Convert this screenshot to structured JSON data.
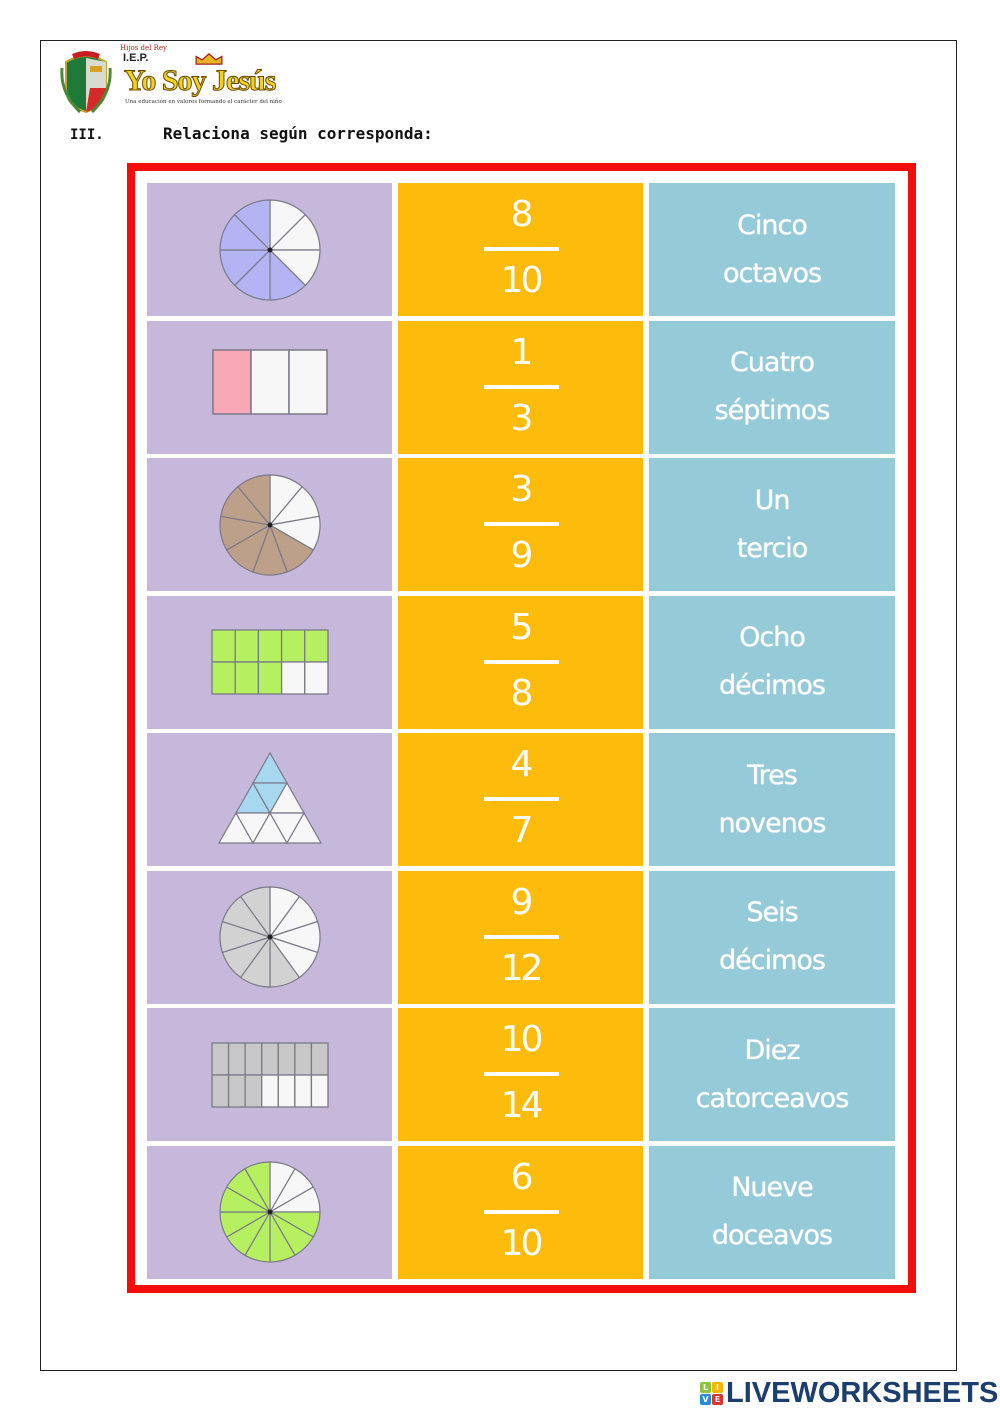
{
  "header": {
    "school_motto_top": "Hijos del Rey",
    "school_type": "I.E.P.",
    "school_name": "Yo Soy Jesús",
    "tagline": "Una educación en valores  formando el carácter del niño"
  },
  "exercise": {
    "number": "III.",
    "instruction": "Relaciona según corresponda:"
  },
  "colors": {
    "frame": "#f40d0d",
    "picture_column": "#c5b8da",
    "fraction_column": "#fdbb0c",
    "word_column": "#95cad9"
  },
  "rows": [
    {
      "picture": {
        "shape": "circle",
        "parts": 8,
        "shaded": 5,
        "color": "#b4b4f5"
      },
      "fraction": {
        "numerator": "8",
        "denominator": "10"
      },
      "words": [
        "Cinco",
        "octavos"
      ]
    },
    {
      "picture": {
        "shape": "bar",
        "parts": 3,
        "shaded": 1,
        "color": "#f9a8b8"
      },
      "fraction": {
        "numerator": "1",
        "denominator": "3"
      },
      "words": [
        "Cuatro",
        "séptimos"
      ]
    },
    {
      "picture": {
        "shape": "circle",
        "parts": 9,
        "shaded": 6,
        "color": "#bca08a"
      },
      "fraction": {
        "numerator": "3",
        "denominator": "9"
      },
      "words": [
        "Un",
        "tercio"
      ]
    },
    {
      "picture": {
        "shape": "grid",
        "parts": 10,
        "shaded": 8,
        "color": "#b6f060"
      },
      "fraction": {
        "numerator": "5",
        "denominator": "8"
      },
      "words": [
        "Ocho",
        "décimos"
      ]
    },
    {
      "picture": {
        "shape": "triangle",
        "parts": 9,
        "shaded": 3,
        "color": "#a8d8f0"
      },
      "fraction": {
        "numerator": "4",
        "denominator": "7"
      },
      "words": [
        "Tres",
        "novenos"
      ]
    },
    {
      "picture": {
        "shape": "circle",
        "parts": 10,
        "shaded": 6,
        "color": "#d2d2d2"
      },
      "fraction": {
        "numerator": "9",
        "denominator": "12"
      },
      "words": [
        "Seis",
        "décimos"
      ]
    },
    {
      "picture": {
        "shape": "grid",
        "parts": 14,
        "shaded": 10,
        "color": "#c8c8c8"
      },
      "fraction": {
        "numerator": "10",
        "denominator": "14"
      },
      "words": [
        "Diez",
        "catorceavos"
      ]
    },
    {
      "picture": {
        "shape": "circle",
        "parts": 12,
        "shaded": 9,
        "color": "#b6f060"
      },
      "fraction": {
        "numerator": "6",
        "denominator": "10"
      },
      "words": [
        "Nueve",
        "doceavos"
      ]
    }
  ],
  "footer": {
    "brand": "LIVEWORKSHEETS",
    "tiles": [
      "L",
      "I",
      "V",
      "E"
    ]
  }
}
